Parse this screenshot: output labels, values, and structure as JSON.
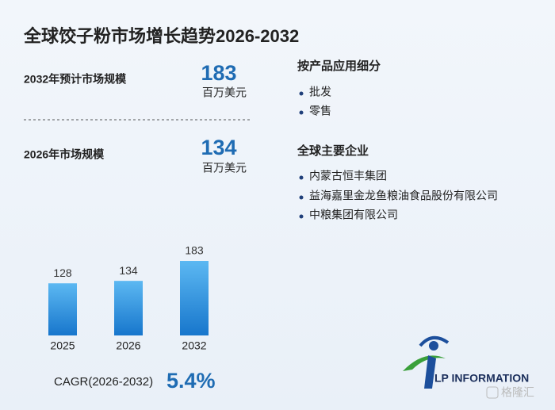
{
  "header": {
    "title": "全球饺子粉市场增长趋势2026-2032"
  },
  "stats": [
    {
      "label": "2032年预计市场规模",
      "value": "183",
      "unit": "百万美元"
    },
    {
      "label": "2026年市场规模",
      "value": "134",
      "unit": "百万美元"
    }
  ],
  "segments": {
    "title": "按产品应用细分",
    "items": [
      "批发",
      "零售"
    ]
  },
  "companies": {
    "title": "全球主要企业",
    "items": [
      "内蒙古恒丰集团",
      "益海嘉里金龙鱼粮油食品股份有限公司",
      "中粮集团有限公司"
    ]
  },
  "cagr": {
    "label": "CAGR(2026-2032)",
    "value": "5.4%"
  },
  "logo": "LP INFORMATION",
  "watermark": "格隆汇",
  "chart_data": {
    "type": "bar",
    "categories": [
      "2025",
      "2026",
      "2032"
    ],
    "values": [
      128,
      134,
      183
    ],
    "color_top": "#5cb8f2",
    "color_bottom": "#1776cc"
  }
}
